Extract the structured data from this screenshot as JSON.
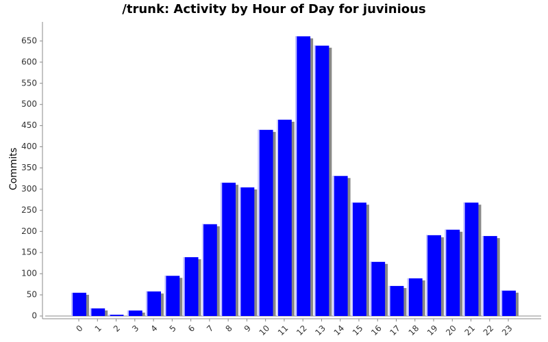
{
  "chart_data": {
    "type": "bar",
    "title": "/trunk: Activity by Hour of Day for juvinious",
    "y_label": "Commits",
    "categories": [
      "0",
      "1",
      "2",
      "3",
      "4",
      "5",
      "6",
      "7",
      "8",
      "9",
      "10",
      "11",
      "12",
      "13",
      "14",
      "15",
      "16",
      "17",
      "18",
      "19",
      "20",
      "21",
      "22",
      "23"
    ],
    "values": [
      55,
      18,
      3,
      13,
      58,
      95,
      139,
      217,
      315,
      304,
      440,
      464,
      661,
      639,
      331,
      268,
      128,
      71,
      89,
      191,
      204,
      268,
      189,
      60
    ],
    "color": "#0000ff",
    "ylim": [
      0,
      700
    ],
    "yticks": [
      0,
      50,
      100,
      150,
      200,
      250,
      300,
      350,
      400,
      450,
      500,
      550,
      600,
      650
    ],
    "grid": false
  }
}
